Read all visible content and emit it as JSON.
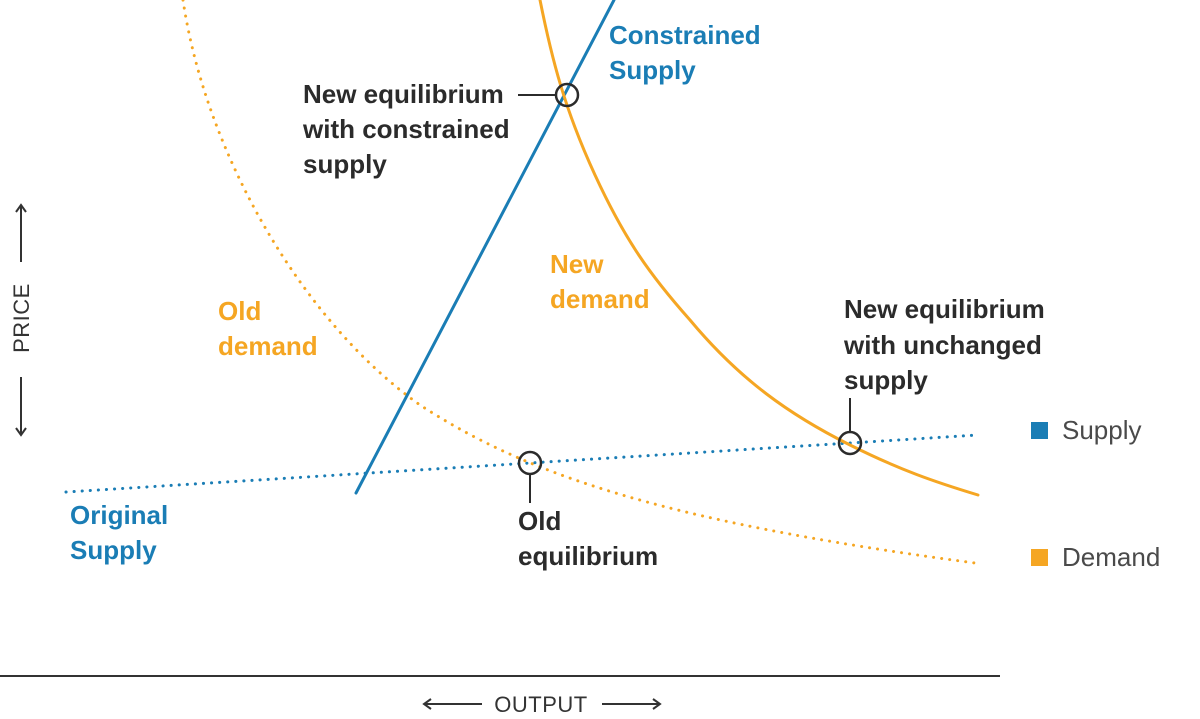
{
  "colors": {
    "supply": "#1a7db5",
    "demand": "#f5a623",
    "text_dark": "#2b2b2b",
    "axis": "#333333",
    "marker": "#2b2b2b"
  },
  "axes": {
    "x_label": "OUTPUT",
    "y_label": "PRICE"
  },
  "curves": {
    "constrained_supply": {
      "label_lines": [
        "Constrained",
        "Supply"
      ],
      "style": "solid"
    },
    "original_supply": {
      "label_lines": [
        "Original",
        "Supply"
      ],
      "style": "dotted"
    },
    "old_demand": {
      "label_lines": [
        "Old",
        "demand"
      ],
      "style": "dotted"
    },
    "new_demand": {
      "label_lines": [
        "New",
        "demand"
      ],
      "style": "solid"
    }
  },
  "annotations": {
    "new_eq_constrained": {
      "lines": [
        "New equilibrium",
        "with constrained",
        "supply"
      ]
    },
    "new_eq_unchanged": {
      "lines": [
        "New equilibrium",
        "with unchanged",
        "supply"
      ]
    },
    "old_eq": {
      "lines": [
        "Old",
        "equilibrium"
      ]
    }
  },
  "legend": [
    {
      "label": "Supply",
      "color": "#1a7db5"
    },
    {
      "label": "Demand",
      "color": "#f5a623"
    }
  ]
}
